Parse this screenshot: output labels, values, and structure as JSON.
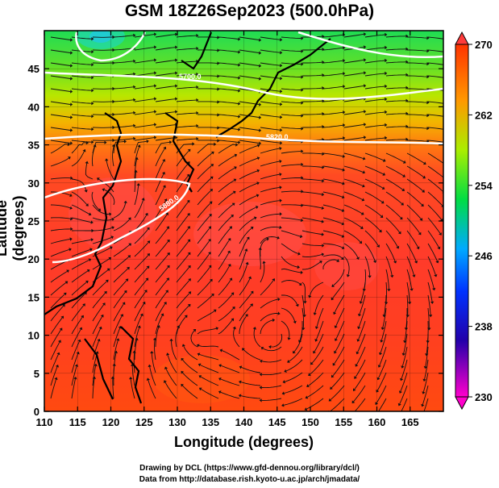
{
  "title": "GSM 18Z26Sep2023 (500.0hPa)",
  "chart_data": {
    "type": "heatmap",
    "title": "GSM 18Z26Sep2023 (500.0hPa)",
    "xlabel": "Longitude (degrees)",
    "ylabel": "Latitude  (degrees)",
    "xlim": [
      110,
      170
    ],
    "ylim": [
      0,
      50
    ],
    "x_ticks": [
      "110",
      "115",
      "120",
      "125",
      "130",
      "135",
      "140",
      "145",
      "150",
      "155",
      "160",
      "165"
    ],
    "y_ticks": [
      "0",
      "5",
      "10",
      "15",
      "20",
      "25",
      "30",
      "35",
      "40",
      "45"
    ],
    "colorbar": {
      "ticks": [
        "230",
        "238",
        "246",
        "254",
        "262",
        "270"
      ],
      "range": [
        230,
        270
      ],
      "colors": [
        "#ff00cc",
        "#2200aa",
        "#00aaff",
        "#00dd44",
        "#aaee00",
        "#ff9900",
        "#ff3300"
      ]
    },
    "contour_labels": [
      "5700.0",
      "5820.0",
      "5880.0"
    ],
    "field_values": [
      {
        "lon": 120,
        "lat": 48,
        "value": 249
      },
      {
        "lon": 150,
        "lat": 45,
        "value": 257
      },
      {
        "lon": 140,
        "lat": 40,
        "value": 262
      },
      {
        "lon": 140,
        "lat": 30,
        "value": 268
      },
      {
        "lon": 140,
        "lat": 10,
        "value": 266
      }
    ]
  },
  "credits": {
    "line1": "Drawing by DCL (https://www.gfd-dennou.org/library/dcl/)",
    "line2": "Data from http://database.rish.kyoto-u.ac.jp/arch/jmadata/"
  }
}
